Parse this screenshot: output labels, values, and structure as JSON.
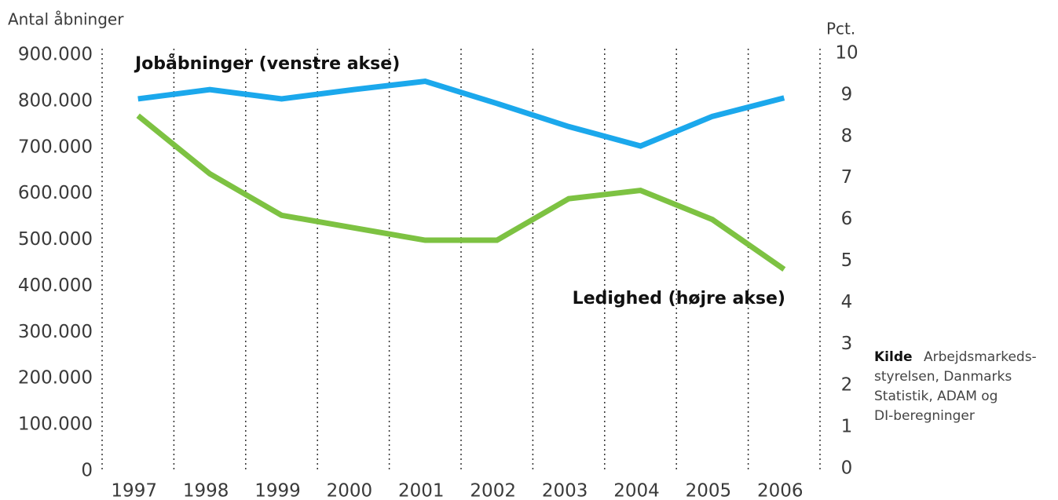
{
  "chart_data": {
    "type": "line",
    "y_label": "Antal åbninger",
    "y2_label": "Pct.",
    "categories": [
      "1997",
      "1998",
      "1999",
      "2000",
      "2001",
      "2002",
      "2003",
      "2004",
      "2005",
      "2006"
    ],
    "series": [
      {
        "name": "Jobåbninger (venstre akse)",
        "color": "#1ba8ec",
        "values": [
          805000,
          825000,
          805000,
          825000,
          843000,
          795000,
          745000,
          703000,
          767000,
          807000
        ]
      },
      {
        "name": "Ledighed (højre akse)",
        "color": "#7dc242",
        "axis": "y2",
        "values": [
          8.5,
          7.1,
          6.1,
          5.8,
          5.5,
          5.5,
          6.5,
          6.7,
          6.0,
          4.8
        ]
      }
    ],
    "ylim": [
      0,
      900000
    ],
    "yticks": [
      0,
      {
        "value": 100000,
        "label": "100.000"
      },
      {
        "value": 200000,
        "label": "200.000"
      },
      {
        "value": 300000,
        "label": "300.000"
      },
      {
        "value": 400000,
        "label": "400.000"
      },
      {
        "value": 500000,
        "label": "500.000"
      },
      {
        "value": 600000,
        "label": "600.000"
      },
      {
        "value": 700000,
        "label": "700.000"
      },
      {
        "value": 800000,
        "label": "800.000"
      },
      {
        "value": 900000,
        "label": "900.000"
      }
    ],
    "y2lim": [
      0,
      10
    ],
    "y2ticks": [
      0,
      1,
      2,
      3,
      4,
      5,
      6,
      7,
      8,
      9,
      10
    ],
    "source_label": "Kilde",
    "source_lines": [
      "Arbejdsmarkeds-",
      "styrelsen, Danmarks",
      "Statistik, ADAM og",
      "DI-beregninger"
    ]
  }
}
